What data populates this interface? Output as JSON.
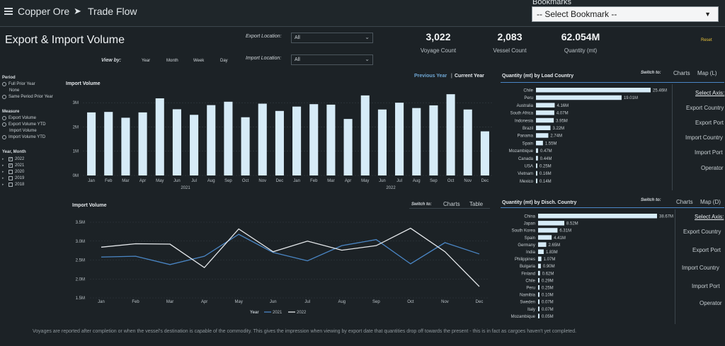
{
  "header": {
    "crumbs": [
      "Copper Ore",
      "Trade Flow"
    ],
    "bookmarks_label": "Bookmarks",
    "bookmark_select": "-- Select Bookmark --"
  },
  "title": "Export & Import Volume",
  "filters": {
    "export_label": "Export Location:",
    "export_value": "All",
    "import_label": "Import Location:",
    "import_value": "All"
  },
  "viewby": {
    "label": "View by:",
    "options": [
      "Year",
      "Month",
      "Week",
      "Day"
    ]
  },
  "kpis": [
    {
      "value": "3,022",
      "label": "Voyage Count"
    },
    {
      "value": "2,083",
      "label": "Vessel Count"
    },
    {
      "value": "62.054M",
      "label": "Quantity (mt)"
    }
  ],
  "reset": "Reset",
  "side": {
    "period_h": "Period",
    "period_opts": [
      "Full Prior Year",
      "None",
      "Same Period Prior Year"
    ],
    "measure_h": "Measure",
    "measure_opts": [
      "Export Volume",
      "Export Volume YTD",
      "Import Volume",
      "Import Volume YTD"
    ],
    "year_h": "Year, Month",
    "years": [
      {
        "label": "2022",
        "checked": true
      },
      {
        "label": "2021",
        "checked": true
      },
      {
        "label": "2020",
        "checked": false
      },
      {
        "label": "2019",
        "checked": false
      },
      {
        "label": "2018",
        "checked": false
      }
    ]
  },
  "toggle": {
    "prev": "Previous Year",
    "sep": "|",
    "cur": "Current Year"
  },
  "bar_chart": {
    "title": "Import Volume",
    "chart_data": {
      "type": "bar",
      "categories": [
        "Jan",
        "Feb",
        "Mar",
        "Apr",
        "May",
        "Jun",
        "Jul",
        "Aug",
        "Sep",
        "Oct",
        "Nov",
        "Dec",
        "Jan",
        "Feb",
        "Mar",
        "Apr",
        "May",
        "Jun",
        "Jul",
        "Aug",
        "Sep",
        "Oct",
        "Nov",
        "Dec"
      ],
      "groups": [
        "2021",
        "2022"
      ],
      "values": [
        2.6,
        2.62,
        2.38,
        2.6,
        3.18,
        2.73,
        2.5,
        2.9,
        3.04,
        2.4,
        2.96,
        2.66,
        2.84,
        2.94,
        2.92,
        2.33,
        3.3,
        2.72,
        3.0,
        2.78,
        2.89,
        3.35,
        2.72,
        1.82
      ],
      "yticks": [
        "0M",
        "1M",
        "2M",
        "3M"
      ],
      "ylim": [
        0,
        3.5
      ],
      "unit": "M"
    }
  },
  "line_chart": {
    "title": "Import Volume",
    "switch_label": "Switch to:",
    "switch_opts": [
      "Charts",
      "Table"
    ],
    "legend_title": "Year",
    "chart_data": {
      "type": "line",
      "categories": [
        "Jan",
        "Feb",
        "Mar",
        "Apr",
        "May",
        "Jun",
        "Jul",
        "Aug",
        "Sep",
        "Oct",
        "Nov",
        "Dec"
      ],
      "yticks": [
        "1.5M",
        "2.0M",
        "2.5M",
        "3.0M",
        "3.5M"
      ],
      "ylim": [
        1.5,
        3.5
      ],
      "series": [
        {
          "name": "2021",
          "color": "#4a86c5",
          "values": [
            2.58,
            2.6,
            2.38,
            2.6,
            3.18,
            2.7,
            2.48,
            2.88,
            3.04,
            2.4,
            2.96,
            2.66
          ]
        },
        {
          "name": "2022",
          "color": "#e6e9ec",
          "values": [
            2.84,
            2.93,
            2.92,
            2.3,
            3.32,
            2.72,
            3.0,
            2.76,
            2.88,
            3.34,
            2.72,
            1.8
          ]
        }
      ]
    }
  },
  "load_country": {
    "title": "Quantity (mt) by Load Country",
    "switch_label": "Switch to:",
    "switch_opts": [
      "Charts",
      "Map (L)"
    ],
    "chart_data": {
      "type": "bar",
      "orientation": "horizontal",
      "categories": [
        "Chile",
        "Peru",
        "Australia",
        "South Africa",
        "Indonesia",
        "Brazil",
        "Panama",
        "Spain",
        "Mozambique",
        "Canada",
        "USA",
        "Vietnam",
        "Mexico"
      ],
      "values": [
        25.46,
        19.01,
        4.16,
        4.07,
        3.95,
        3.22,
        2.74,
        1.55,
        0.47,
        0.44,
        0.25,
        0.16,
        0.14
      ],
      "labels": [
        "25.46M",
        "19.01M",
        "4.16M",
        "4.07M",
        "3.95M",
        "3.22M",
        "2.74M",
        "1.55M",
        "0.47M",
        "0.44M",
        "0.25M",
        "0.16M",
        "0.14M"
      ]
    },
    "axis_menu": [
      "Select Axis:",
      "Export Country",
      "Export Port",
      "Import Country",
      "Import Port",
      "Operator"
    ]
  },
  "disch_country": {
    "title": "Quantity (mt) by Disch. Country",
    "switch_label": "Switch to:",
    "switch_opts": [
      "Charts",
      "Map (D)"
    ],
    "chart_data": {
      "type": "bar",
      "orientation": "horizontal",
      "categories": [
        "China",
        "Japan",
        "South Korea",
        "Spain",
        "Germany",
        "India",
        "Philippines",
        "Bulgaria",
        "Finland",
        "Chile",
        "Peru",
        "Namibia",
        "Sweden",
        "Italy",
        "Mozambique"
      ],
      "values": [
        38.67,
        8.52,
        6.31,
        4.41,
        2.65,
        1.83,
        1.07,
        0.9,
        0.62,
        0.29,
        0.25,
        0.1,
        0.07,
        0.07,
        0.05
      ],
      "labels": [
        "38.67M",
        "8.52M",
        "6.31M",
        "4.41M",
        "2.65M",
        "1.83M",
        "1.07M",
        "0.90M",
        "0.62M",
        "0.29M",
        "0.25M",
        "0.10M",
        "0.07M",
        "0.07M",
        "0.05M"
      ]
    },
    "axis_menu": [
      "Select Axis:",
      "Export Country",
      "Export Port",
      "Import Country",
      "Import Port",
      "Operator"
    ]
  },
  "footnote": "Voyages are reported after completion or when the vessel's destination is capable of the commodity. This gives the impression when viewing by export date that quantities drop off towards the present - this is in fact as cargoes haven't yet completed."
}
